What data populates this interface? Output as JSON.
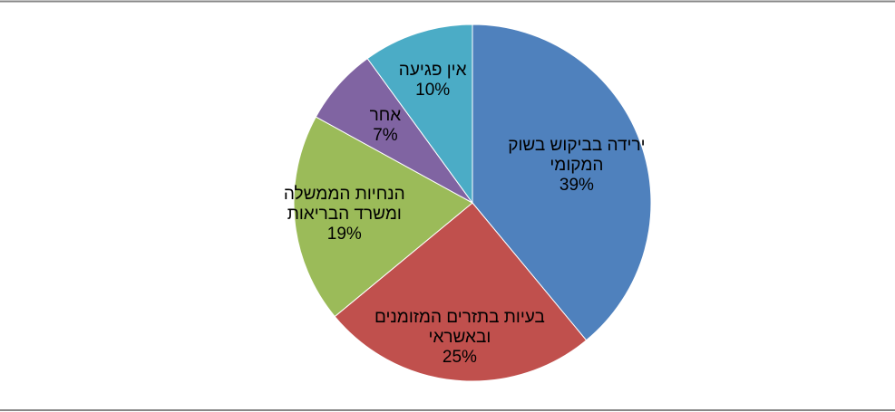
{
  "chart_data": {
    "type": "pie",
    "categories": [
      "ירידה בביקוש בשוק המקומי",
      "בעיות בתזרים המזומנים ובאשראי",
      "הנחיות הממשלה ומשרד הבריאות",
      "אחר",
      "אין פגיעה"
    ],
    "values": [
      39,
      25,
      19,
      7,
      10
    ],
    "value_labels": [
      "39%",
      "25%",
      "19%",
      "7%",
      "10%"
    ],
    "colors": [
      "#4f81bd",
      "#c0504d",
      "#9bbb59",
      "#8064a2",
      "#4bacc6"
    ]
  }
}
